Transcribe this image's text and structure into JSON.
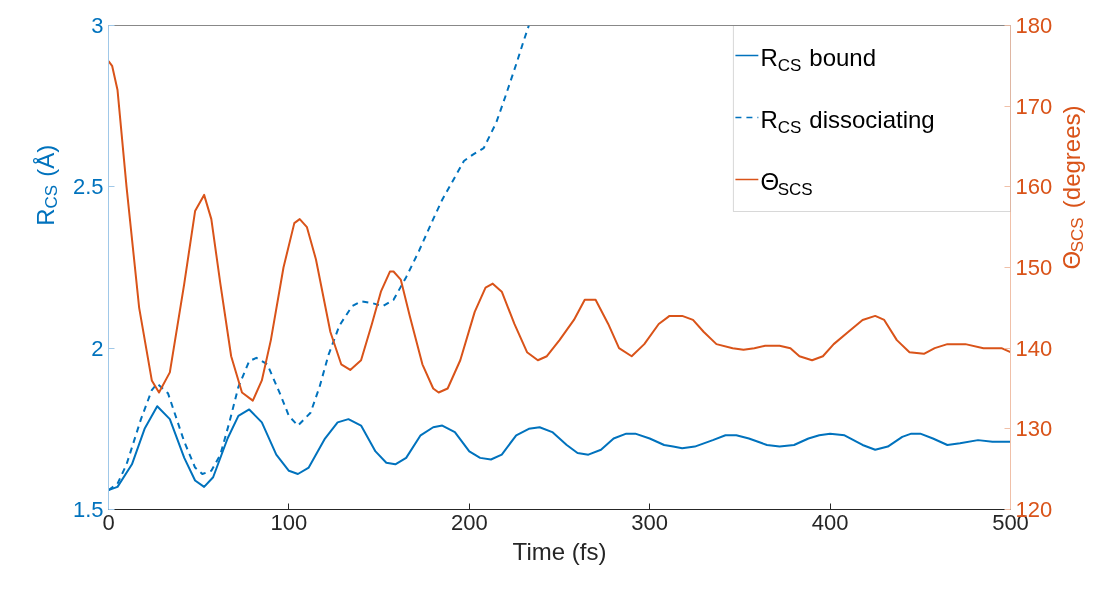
{
  "chart_data": {
    "type": "line",
    "xlabel": "Time (fs)",
    "ylabel": "R$_{CS}$ (Å)",
    "y2label": "Θ$_{SCS}$ (degrees)",
    "xlim": [
      0,
      500
    ],
    "xticks": [
      0,
      100,
      200,
      300,
      400,
      500
    ],
    "ylim": [
      1.5,
      3
    ],
    "yticks": [
      1.5,
      2,
      2.5,
      3
    ],
    "y2lim": [
      120,
      180
    ],
    "y2ticks": [
      120,
      130,
      140,
      150,
      160,
      170,
      180
    ],
    "grid": false,
    "legend": "top right",
    "marker": "none",
    "series": [
      {
        "name": "R$_{CS}$ bound",
        "color": "#0072bd",
        "line_style": "solid",
        "x": [
          0,
          5,
          13,
          20,
          27,
          34,
          42,
          48,
          53,
          58,
          66,
          72,
          78,
          85,
          93,
          100,
          105,
          111,
          120,
          127,
          133,
          140,
          148,
          154,
          159,
          165,
          173,
          180,
          185,
          192,
          200,
          206,
          212,
          218,
          226,
          233,
          239,
          246,
          254,
          260,
          266,
          273,
          280,
          287,
          292,
          300,
          308,
          313,
          318,
          325,
          335,
          342,
          348,
          355,
          365,
          372,
          380,
          388,
          394,
          400,
          408,
          418,
          425,
          432,
          440,
          445,
          450,
          457,
          465,
          472,
          482,
          490,
          500
        ],
        "values": [
          1.56,
          1.57,
          1.64,
          1.75,
          1.82,
          1.78,
          1.66,
          1.59,
          1.57,
          1.6,
          1.72,
          1.79,
          1.81,
          1.77,
          1.67,
          1.62,
          1.61,
          1.63,
          1.72,
          1.77,
          1.78,
          1.76,
          1.68,
          1.645,
          1.64,
          1.66,
          1.73,
          1.755,
          1.76,
          1.74,
          1.68,
          1.66,
          1.655,
          1.67,
          1.73,
          1.75,
          1.755,
          1.74,
          1.7,
          1.675,
          1.67,
          1.685,
          1.72,
          1.735,
          1.735,
          1.72,
          1.7,
          1.695,
          1.69,
          1.695,
          1.715,
          1.73,
          1.73,
          1.72,
          1.7,
          1.695,
          1.7,
          1.72,
          1.73,
          1.735,
          1.73,
          1.7,
          1.685,
          1.695,
          1.725,
          1.735,
          1.735,
          1.72,
          1.7,
          1.705,
          1.715,
          1.71,
          1.71
        ]
      },
      {
        "name": "R$_{CS}$ dissociating",
        "color": "#0072bd",
        "line_style": "dashed",
        "x": [
          0,
          5,
          10,
          18,
          24,
          27,
          33,
          42,
          48,
          52,
          57,
          62,
          67,
          72,
          78,
          82,
          88,
          95,
          100,
          105,
          112,
          117,
          122,
          128,
          135,
          140,
          146,
          152,
          158,
          165,
          172,
          180,
          185,
          192,
          197,
          202,
          208,
          215,
          220,
          226,
          230,
          233
        ],
        "values": [
          1.56,
          1.58,
          1.64,
          1.78,
          1.87,
          1.89,
          1.86,
          1.71,
          1.63,
          1.61,
          1.62,
          1.67,
          1.77,
          1.88,
          1.96,
          1.97,
          1.95,
          1.86,
          1.79,
          1.76,
          1.8,
          1.88,
          1.98,
          2.07,
          2.13,
          2.145,
          2.14,
          2.13,
          2.15,
          2.22,
          2.3,
          2.4,
          2.46,
          2.53,
          2.58,
          2.6,
          2.62,
          2.7,
          2.78,
          2.88,
          2.95,
          3.0
        ]
      },
      {
        "name": "Θ$_{SCS}$",
        "color": "#d95319",
        "line_style": "solid",
        "axis": "y2",
        "x": [
          0,
          2,
          5,
          10,
          17,
          24,
          28,
          34,
          42,
          48,
          53,
          57,
          62,
          68,
          74,
          80,
          85,
          90,
          97,
          103,
          106,
          110,
          115,
          123,
          129,
          134,
          140,
          146,
          151,
          156,
          158,
          162,
          167,
          174,
          180,
          183,
          188,
          195,
          203,
          209,
          213,
          218,
          225,
          232,
          238,
          243,
          250,
          258,
          264,
          270,
          277,
          283,
          290,
          297,
          305,
          311,
          318,
          324,
          330,
          337,
          346,
          352,
          358,
          364,
          372,
          378,
          383,
          390,
          396,
          402,
          410,
          418,
          425,
          430,
          437,
          444,
          452,
          458,
          465,
          475,
          485,
          495,
          500
        ],
        "values": [
          175.6,
          175,
          172,
          160,
          145,
          136,
          134.5,
          137,
          148,
          157,
          159,
          156,
          148,
          139,
          134.5,
          133.5,
          136,
          141,
          150,
          155.5,
          156,
          155,
          151,
          142,
          138,
          137.3,
          138.5,
          143,
          147,
          149.5,
          149.5,
          148.5,
          144,
          138,
          135,
          134.5,
          135,
          138.5,
          144.5,
          147.5,
          148,
          147,
          143,
          139.5,
          138.5,
          139,
          141,
          143.5,
          146,
          146,
          143,
          140,
          139,
          140.5,
          143,
          144,
          144,
          143.5,
          142,
          140.5,
          140,
          139.8,
          140,
          140.3,
          140.3,
          140,
          139,
          138.5,
          139,
          140.5,
          142,
          143.5,
          144,
          143.5,
          141,
          139.5,
          139.3,
          140,
          140.5,
          140.5,
          140,
          140,
          139.5
        ]
      }
    ]
  }
}
